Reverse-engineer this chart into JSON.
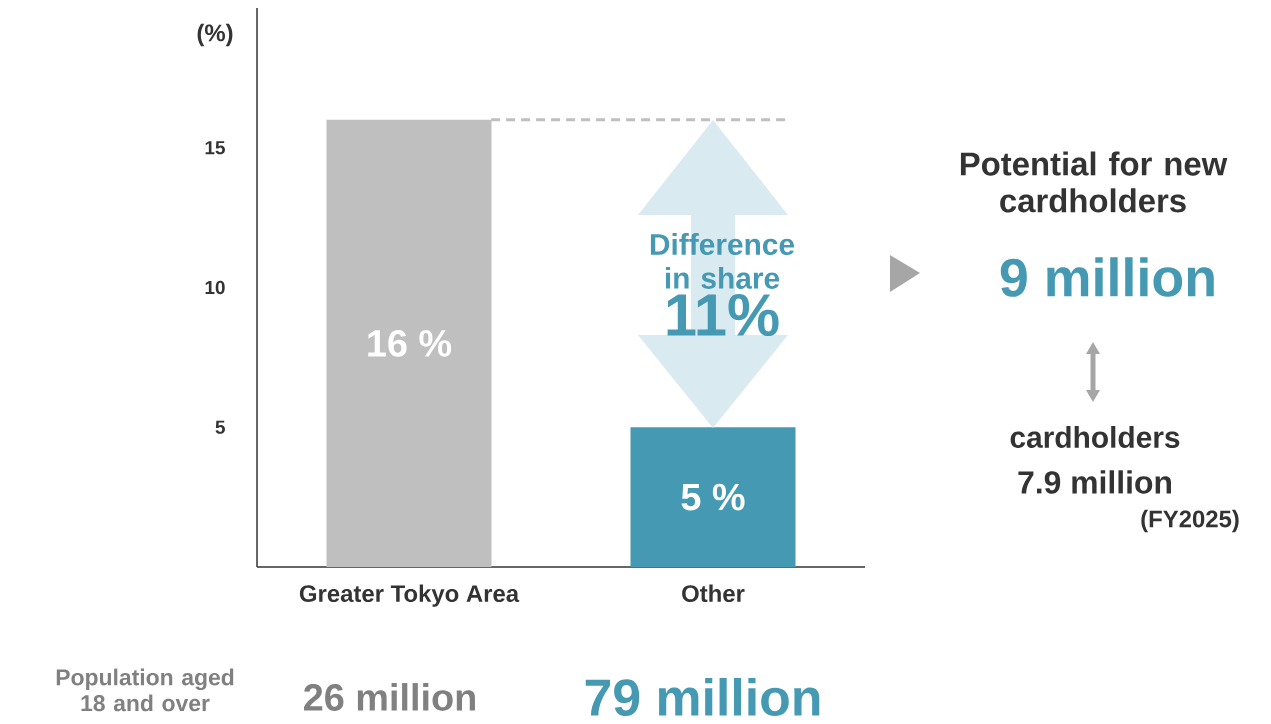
{
  "chart_data": {
    "type": "bar",
    "ylabel": "(%)",
    "categories": [
      "Greater Tokyo Area",
      "Other"
    ],
    "values": [
      16,
      5
    ],
    "colors": [
      "#bfbfbf",
      "#4599b2"
    ],
    "value_labels": [
      "16 %",
      "5 %"
    ],
    "ylim": [
      0,
      20
    ],
    "yticks": [
      5,
      10,
      15
    ],
    "ref_lines": [
      {
        "axis": "y",
        "value": 16,
        "color": "#bfbfbf",
        "line_style": "dashed"
      }
    ],
    "annotations": [
      "Difference in share",
      "11%",
      "Potential for new cardholders",
      "9 million",
      "cardholders",
      "7.9 million",
      "(FY2025)",
      "Population aged 18 and over",
      "26 million",
      "79 million"
    ]
  }
}
